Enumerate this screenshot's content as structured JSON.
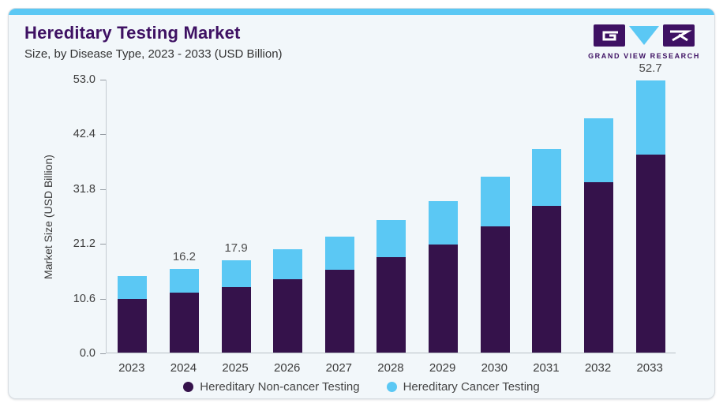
{
  "card": {
    "title": "Hereditary Testing Market",
    "subtitle": "Size, by Disease Type, 2023 - 2033 (USD Billion)",
    "brand": {
      "name": "GRAND VIEW RESEARCH"
    }
  },
  "colors": {
    "accent_strip": "#5bc8f4",
    "non_cancer_bar": "#35124b",
    "cancer_bar": "#5bc8f4",
    "card_background": "#f2f7fa",
    "title_purple": "#3e1163"
  },
  "chart_data": {
    "type": "bar",
    "stacked": true,
    "title": "Hereditary Testing Market",
    "subtitle": "Size, by Disease Type, 2023 - 2033 (USD Billion)",
    "xlabel": "",
    "ylabel": "Market Size (USD Billion)",
    "categories": [
      "2023",
      "2024",
      "2025",
      "2026",
      "2027",
      "2028",
      "2029",
      "2030",
      "2031",
      "2032",
      "2033"
    ],
    "series": [
      {
        "name": "Hereditary Non-cancer Testing",
        "color": "#35124b",
        "values": [
          10.4,
          11.6,
          12.7,
          14.2,
          16.1,
          18.5,
          21.0,
          24.4,
          28.4,
          33.0,
          38.3
        ]
      },
      {
        "name": "Hereditary Cancer Testing",
        "color": "#5bc8f4",
        "values": [
          4.4,
          4.6,
          5.2,
          5.8,
          6.4,
          7.2,
          8.4,
          9.6,
          11.0,
          12.4,
          14.4
        ]
      }
    ],
    "totals": [
      14.8,
      16.2,
      17.9,
      20.0,
      22.5,
      25.7,
      29.4,
      34.0,
      39.4,
      45.4,
      52.7
    ],
    "bar_labels": [
      "",
      "16.2",
      "17.9",
      "",
      "",
      "",
      "",
      "",
      "",
      "",
      "52.7"
    ],
    "ylim": [
      0,
      53.0
    ],
    "yticks": [
      0.0,
      10.6,
      21.2,
      31.8,
      42.4,
      53.0
    ],
    "grid": false,
    "legend_position": "bottom"
  }
}
